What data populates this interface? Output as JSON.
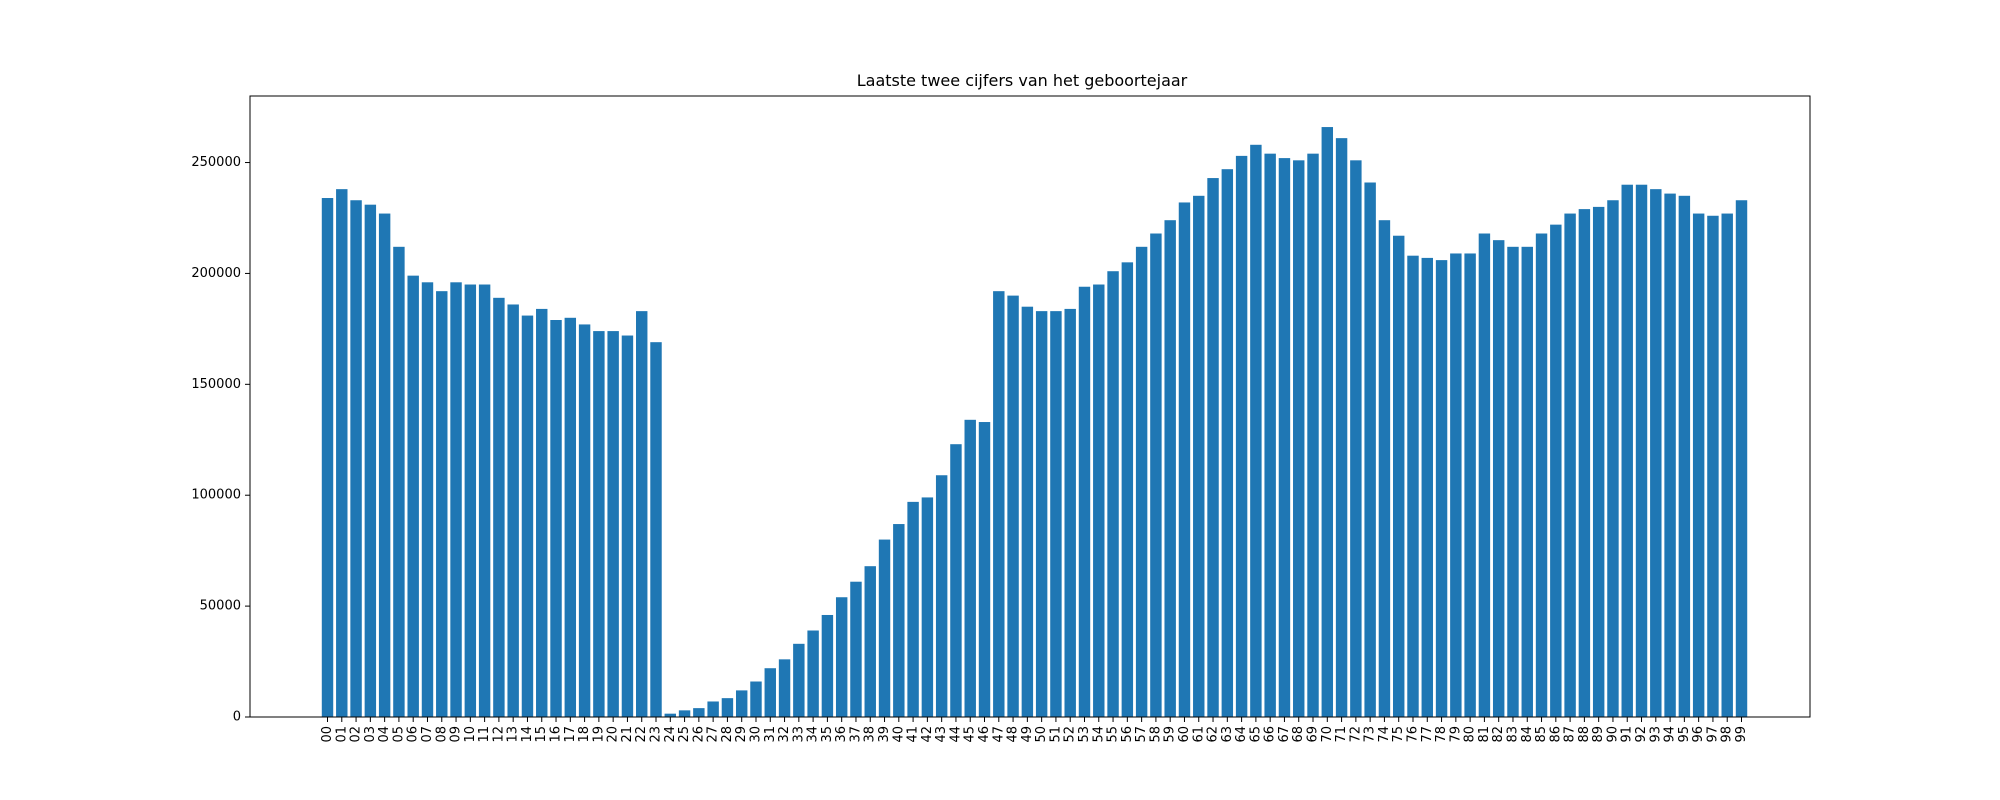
{
  "chart_data": {
    "type": "bar",
    "title": "Laatste twee cijfers van het geboortejaar",
    "xlabel": "",
    "ylabel": "",
    "ylim": [
      0,
      280000
    ],
    "yticks": [
      0,
      50000,
      100000,
      150000,
      200000,
      250000
    ],
    "ytick_labels": [
      "0",
      "50000",
      "100000",
      "150000",
      "200000",
      "250000"
    ],
    "grid": false,
    "bar_color": "#1f77b4",
    "categories": [
      "00",
      "01",
      "02",
      "03",
      "04",
      "05",
      "06",
      "07",
      "08",
      "09",
      "10",
      "11",
      "12",
      "13",
      "14",
      "15",
      "16",
      "17",
      "18",
      "19",
      "20",
      "21",
      "22",
      "23",
      "24",
      "25",
      "26",
      "27",
      "28",
      "29",
      "30",
      "31",
      "32",
      "33",
      "34",
      "35",
      "36",
      "37",
      "38",
      "39",
      "40",
      "41",
      "42",
      "43",
      "44",
      "45",
      "46",
      "47",
      "48",
      "49",
      "50",
      "51",
      "52",
      "53",
      "54",
      "55",
      "56",
      "57",
      "58",
      "59",
      "60",
      "61",
      "62",
      "63",
      "64",
      "65",
      "66",
      "67",
      "68",
      "69",
      "70",
      "71",
      "72",
      "73",
      "74",
      "75",
      "76",
      "77",
      "78",
      "79",
      "80",
      "81",
      "82",
      "83",
      "84",
      "85",
      "86",
      "87",
      "88",
      "89",
      "90",
      "91",
      "92",
      "93",
      "94",
      "95",
      "96",
      "97",
      "98",
      "99"
    ],
    "values": [
      234000,
      238000,
      233000,
      231000,
      227000,
      212000,
      199000,
      196000,
      192000,
      196000,
      195000,
      195000,
      189000,
      186000,
      181000,
      184000,
      179000,
      180000,
      177000,
      174000,
      174000,
      172000,
      183000,
      169000,
      1500,
      3000,
      4000,
      7000,
      8500,
      12000,
      16000,
      22000,
      26000,
      33000,
      39000,
      46000,
      54000,
      61000,
      68000,
      80000,
      87000,
      97000,
      99000,
      109000,
      123000,
      134000,
      133000,
      192000,
      190000,
      185000,
      183000,
      183000,
      184000,
      194000,
      195000,
      201000,
      205000,
      212000,
      218000,
      224000,
      232000,
      235000,
      243000,
      247000,
      253000,
      258000,
      254000,
      252000,
      251000,
      254000,
      266000,
      261000,
      251000,
      241000,
      224000,
      217000,
      208000,
      207000,
      206000,
      209000,
      209000,
      218000,
      215000,
      212000,
      212000,
      218000,
      222000,
      227000,
      229000,
      230000,
      233000,
      240000,
      240000,
      238000,
      236000,
      235000,
      227000,
      226000,
      227000,
      233000
    ]
  }
}
